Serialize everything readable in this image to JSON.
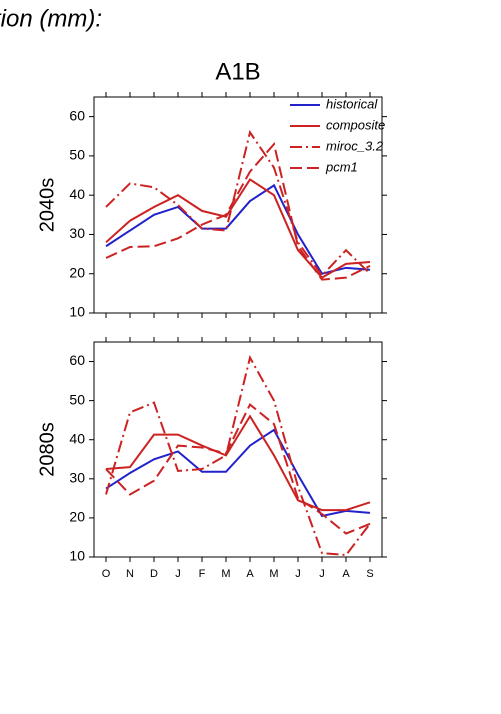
{
  "title": "tion (mm):",
  "subtitle": "A1B",
  "chart_data": [
    {
      "type": "line",
      "ylabel": "2040s",
      "categories": [
        "O",
        "N",
        "D",
        "J",
        "F",
        "M",
        "A",
        "M",
        "J",
        "J",
        "A",
        "S"
      ],
      "ylim": [
        10,
        65
      ],
      "yticks": [
        10,
        20,
        30,
        40,
        50,
        60
      ],
      "legend": "upper right",
      "series": [
        {
          "name": "historical",
          "color": "#2222cc",
          "dash": "solid",
          "values": [
            27,
            31,
            35,
            37,
            31.5,
            31.5,
            38.5,
            42.5,
            30,
            20,
            21.5,
            21
          ]
        },
        {
          "name": "composite",
          "color": "#cc2222",
          "dash": "solid",
          "values": [
            28,
            33.5,
            37,
            40,
            36,
            34.5,
            44,
            40,
            26,
            19,
            22.5,
            23
          ]
        },
        {
          "name": "miroc_3.2",
          "color": "#cc2222",
          "dash": "dashdot",
          "values": [
            37,
            43,
            42,
            37.5,
            31.5,
            31,
            56,
            47,
            28,
            19.5,
            26,
            20
          ]
        },
        {
          "name": "pcm1",
          "color": "#cc2222",
          "dash": "dashed",
          "values": [
            24,
            26.8,
            27,
            29,
            32.5,
            35,
            46,
            53,
            27,
            18.5,
            19,
            22
          ]
        }
      ]
    },
    {
      "type": "line",
      "ylabel": "2080s",
      "categories": [
        "O",
        "N",
        "D",
        "J",
        "F",
        "M",
        "A",
        "M",
        "J",
        "J",
        "A",
        "S"
      ],
      "ylim": [
        10,
        65
      ],
      "yticks": [
        10,
        20,
        30,
        40,
        50,
        60
      ],
      "series": [
        {
          "color": "#2222cc",
          "dash": "solid",
          "values": [
            27.5,
            31.5,
            35,
            37,
            31.8,
            31.8,
            38.5,
            42.5,
            31,
            20.5,
            21.8,
            21.3
          ]
        },
        {
          "color": "#cc2222",
          "dash": "solid",
          "values": [
            32.5,
            33,
            41.3,
            41.3,
            38.5,
            36,
            46,
            36,
            24.5,
            22,
            22,
            24
          ]
        },
        {
          "color": "#cc2222",
          "dash": "dashdot",
          "values": [
            26,
            47,
            49.5,
            32,
            32.5,
            36,
            61,
            50,
            28,
            11,
            10.5,
            18.5
          ]
        },
        {
          "color": "#cc2222",
          "dash": "dashed",
          "values": [
            32.5,
            26,
            29.5,
            38.5,
            38,
            36.5,
            49,
            44,
            25,
            21,
            16,
            18.5
          ]
        }
      ]
    }
  ]
}
